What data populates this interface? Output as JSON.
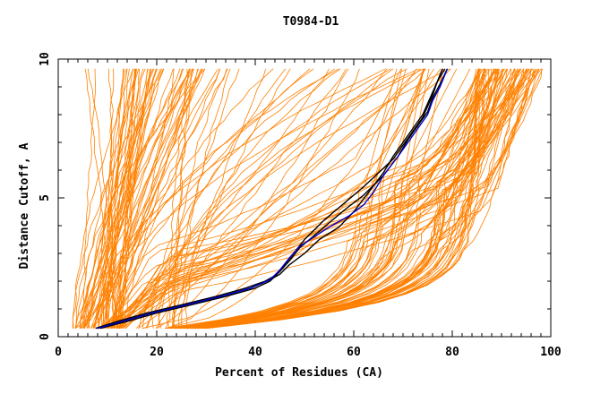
{
  "chart_data": {
    "type": "line",
    "title": "T0984-D1",
    "xlabel": "Percent of Residues (CA)",
    "ylabel": "Distance Cutoff, A",
    "xlim": [
      0,
      100
    ],
    "ylim": [
      0,
      10
    ],
    "x_ticks": [
      0,
      20,
      40,
      60,
      80,
      100
    ],
    "y_ticks": [
      0,
      5,
      10
    ],
    "x_tick_labels": [
      "0",
      "20",
      "40",
      "60",
      "80",
      "100"
    ],
    "y_tick_labels": [
      "0",
      "5",
      "10"
    ],
    "colors": {
      "background_models": "#ff8000",
      "highlight_black": "#000000",
      "highlight_blue": "#0000cc"
    },
    "series": [
      {
        "name": "highlight-black-1",
        "color": "#000000",
        "x": [
          7.6,
          12,
          18,
          25,
          32,
          38,
          42,
          44,
          46,
          48,
          50,
          54,
          58,
          62,
          65,
          68,
          70,
          72,
          74,
          75,
          76,
          77,
          78
        ],
        "y": [
          0.3,
          0.55,
          0.85,
          1.15,
          1.45,
          1.75,
          2.0,
          2.2,
          2.6,
          3.05,
          3.5,
          4.2,
          4.8,
          5.4,
          5.9,
          6.4,
          6.9,
          7.4,
          7.9,
          8.3,
          8.7,
          9.2,
          9.65
        ]
      },
      {
        "name": "highlight-black-2",
        "color": "#000000",
        "x": [
          8,
          13,
          19,
          26,
          33,
          39,
          43,
          45,
          47,
          50,
          53,
          57,
          60,
          63,
          66,
          68,
          70,
          72,
          74,
          75,
          76,
          77,
          78.5
        ],
        "y": [
          0.3,
          0.55,
          0.85,
          1.15,
          1.45,
          1.75,
          2.05,
          2.25,
          2.6,
          3.0,
          3.5,
          3.95,
          4.5,
          5.2,
          5.9,
          6.5,
          7.0,
          7.5,
          8.0,
          8.4,
          8.8,
          9.2,
          9.65
        ]
      },
      {
        "name": "highlight-black-3",
        "color": "#000000",
        "x": [
          8.5,
          14,
          20,
          27,
          34,
          40,
          43,
          45,
          47,
          49,
          52,
          55,
          58,
          62,
          66,
          69,
          71,
          73,
          75,
          76,
          77.5,
          79
        ],
        "y": [
          0.3,
          0.55,
          0.85,
          1.15,
          1.45,
          1.75,
          2.0,
          2.35,
          2.75,
          3.2,
          3.65,
          4.1,
          4.55,
          5.1,
          5.8,
          6.5,
          7.1,
          7.6,
          8.1,
          8.6,
          9.1,
          9.65
        ]
      },
      {
        "name": "highlight-blue",
        "color": "#0000cc",
        "x": [
          8,
          13,
          19,
          26,
          33,
          39,
          43,
          45,
          47,
          49,
          52,
          55,
          59,
          62,
          64,
          66,
          69,
          71,
          73,
          75,
          76,
          77.5,
          79
        ],
        "y": [
          0.3,
          0.55,
          0.85,
          1.15,
          1.45,
          1.75,
          2.05,
          2.4,
          2.85,
          3.25,
          3.6,
          3.95,
          4.35,
          4.75,
          5.2,
          5.8,
          6.5,
          7.0,
          7.5,
          8.0,
          8.5,
          9.0,
          9.65
        ]
      }
    ]
  }
}
